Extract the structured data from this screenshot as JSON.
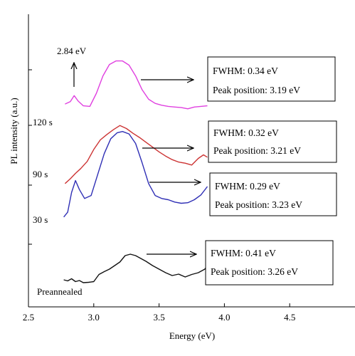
{
  "chart_data": {
    "type": "line",
    "xlabel": "Energy (eV)",
    "ylabel": "PL intensity (a.u.)",
    "xlim": [
      2.5,
      5.0
    ],
    "xticks": [
      "2.5",
      "3.0",
      "3.5",
      "4.0",
      "4.5"
    ],
    "y_tick_labels_shown": false,
    "grid": false,
    "legend": "none",
    "series": [
      {
        "name": "120 s",
        "color": "#e040e0",
        "x": [
          2.78,
          2.82,
          2.85,
          2.88,
          2.92,
          2.97,
          3.02,
          3.07,
          3.12,
          3.17,
          3.22,
          3.27,
          3.32,
          3.37,
          3.42,
          3.47,
          3.52,
          3.57,
          3.62,
          3.67,
          3.72,
          3.77,
          3.82,
          3.87
        ],
        "y": [
          3.38,
          3.42,
          3.52,
          3.43,
          3.35,
          3.34,
          3.56,
          3.85,
          4.04,
          4.1,
          4.1,
          4.03,
          3.85,
          3.62,
          3.46,
          3.39,
          3.36,
          3.34,
          3.33,
          3.32,
          3.3,
          3.33,
          3.34,
          3.35
        ]
      },
      {
        "name": "90 s",
        "color": "#cc3333",
        "x": [
          2.78,
          2.82,
          2.86,
          2.9,
          2.95,
          3.0,
          3.05,
          3.1,
          3.15,
          3.2,
          3.25,
          3.3,
          3.35,
          3.4,
          3.45,
          3.5,
          3.55,
          3.6,
          3.65,
          3.7,
          3.75,
          3.8,
          3.84,
          3.87
        ],
        "y": [
          2.05,
          2.13,
          2.22,
          2.3,
          2.42,
          2.62,
          2.78,
          2.87,
          2.95,
          3.02,
          2.97,
          2.89,
          2.82,
          2.74,
          2.66,
          2.58,
          2.51,
          2.45,
          2.41,
          2.39,
          2.36,
          2.47,
          2.53,
          2.49
        ]
      },
      {
        "name": "30 s",
        "color": "#2f2fb5",
        "x": [
          2.77,
          2.8,
          2.83,
          2.86,
          2.89,
          2.93,
          2.98,
          3.03,
          3.08,
          3.13,
          3.18,
          3.22,
          3.27,
          3.32,
          3.37,
          3.42,
          3.47,
          3.52,
          3.57,
          3.62,
          3.67,
          3.72,
          3.77,
          3.82,
          3.87
        ],
        "y": [
          1.49,
          1.57,
          1.9,
          2.1,
          1.95,
          1.8,
          1.85,
          2.2,
          2.55,
          2.8,
          2.9,
          2.92,
          2.88,
          2.72,
          2.4,
          2.05,
          1.85,
          1.8,
          1.78,
          1.74,
          1.72,
          1.73,
          1.78,
          1.86,
          2.0
        ]
      },
      {
        "name": "Preannealed",
        "color": "#111111",
        "x": [
          2.77,
          2.8,
          2.83,
          2.86,
          2.89,
          2.92,
          2.96,
          3.0,
          3.04,
          3.08,
          3.12,
          3.16,
          3.2,
          3.24,
          3.28,
          3.32,
          3.36,
          3.4,
          3.45,
          3.5,
          3.55,
          3.6,
          3.65,
          3.7,
          3.75,
          3.8,
          3.85,
          3.87
        ],
        "y": [
          0.1,
          0.07,
          0.13,
          0.05,
          0.08,
          0.02,
          0.03,
          0.05,
          0.25,
          0.33,
          0.4,
          0.5,
          0.6,
          0.78,
          0.82,
          0.78,
          0.7,
          0.62,
          0.5,
          0.4,
          0.3,
          0.22,
          0.26,
          0.18,
          0.25,
          0.3,
          0.4,
          0.5
        ]
      }
    ],
    "series_labels": [
      "120 s",
      "90 s",
      "30 s",
      "Preannealed"
    ],
    "peak_annotation": {
      "text": "2.84 eV",
      "x": 2.84
    },
    "info_boxes": [
      {
        "fwhm": "FWHM: 0.34 eV",
        "peak": "Peak position: 3.19 eV"
      },
      {
        "fwhm": "FWHM: 0.32 eV",
        "peak": "Peak position: 3.21 eV"
      },
      {
        "fwhm": "FWHM: 0.29 eV",
        "peak": "Peak position: 3.23 eV"
      },
      {
        "fwhm": "FWHM: 0.41 eV",
        "peak": "Peak position: 3.26 eV"
      }
    ]
  }
}
